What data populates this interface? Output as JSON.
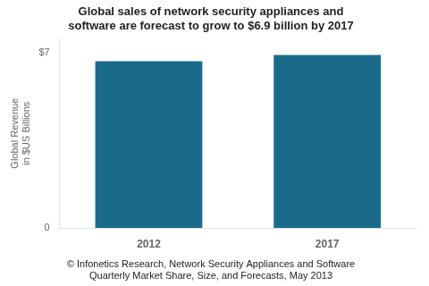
{
  "chart_data": {
    "type": "bar",
    "title": [
      "Global sales of network security appliances and",
      "software are forecast to grow to $6.9 billion by 2017"
    ],
    "ylabel": [
      "Global Revenue",
      "in $US Billions"
    ],
    "annotations": [
      "© Infonetics Research, Network Security Appliances and Software",
      "Quarterly Market Share, Size, and Forecasts, May 2013"
    ],
    "categories": [
      "2012",
      "2017"
    ],
    "values": [
      6.65,
      6.9
    ],
    "color": "#1a6b8a",
    "ylim": [
      0,
      7.55
    ],
    "yticks": [
      0,
      {
        "value": 7,
        "label": "$7"
      }
    ],
    "grid": false
  }
}
